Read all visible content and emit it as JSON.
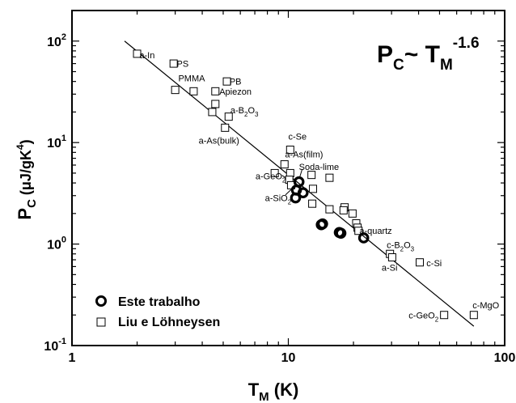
{
  "chart_data": {
    "type": "scatter",
    "xscale": "log",
    "yscale": "log",
    "xlim": [
      1,
      100
    ],
    "ylim": [
      0.1,
      200
    ],
    "xticks": [
      "1",
      "10",
      "100"
    ],
    "yticks": [
      {
        "base": "10",
        "exp": "-1"
      },
      {
        "base": "10",
        "exp": "0"
      },
      {
        "base": "10",
        "exp": "1"
      },
      {
        "base": "10",
        "exp": "2"
      }
    ],
    "xlabel": {
      "main": "T",
      "sub": "M",
      "unit": " (K)"
    },
    "ylabel": {
      "main": "P",
      "sub": "C",
      "unit_a": " (μJ/gK",
      "unit_sup": "4",
      "unit_b": ")"
    },
    "equation": {
      "p": "P",
      "psub": "C",
      "tilde": "~ T",
      "tsub": "M",
      "exp": "-1.6"
    },
    "legend": {
      "placement": "bottom-left",
      "entries": [
        {
          "marker": "circle",
          "label": "Este trabalho"
        },
        {
          "marker": "square",
          "label": "Liu e Löhneysen"
        }
      ]
    },
    "fit_line": {
      "x": [
        1.75,
        72
      ],
      "y": [
        100,
        0.155
      ]
    },
    "series": [
      {
        "name": "Este trabalho",
        "marker": "circle",
        "points": [
          {
            "x": 11.2,
            "y": 4.1
          },
          {
            "x": 10.9,
            "y": 3.4
          },
          {
            "x": 11.7,
            "y": 3.2
          },
          {
            "x": 10.8,
            "y": 2.85
          },
          {
            "x": 14.2,
            "y": 1.55
          },
          {
            "x": 14.4,
            "y": 1.58
          },
          {
            "x": 17.2,
            "y": 1.3
          },
          {
            "x": 17.5,
            "y": 1.28
          },
          {
            "x": 22.3,
            "y": 1.15
          }
        ]
      },
      {
        "name": "Liu e Löhneysen",
        "marker": "square",
        "points": [
          {
            "x": 2.0,
            "y": 75
          },
          {
            "x": 2.95,
            "y": 60
          },
          {
            "x": 5.2,
            "y": 40
          },
          {
            "x": 3.0,
            "y": 33
          },
          {
            "x": 3.65,
            "y": 32
          },
          {
            "x": 4.6,
            "y": 32
          },
          {
            "x": 4.6,
            "y": 24
          },
          {
            "x": 4.45,
            "y": 20
          },
          {
            "x": 5.3,
            "y": 18
          },
          {
            "x": 5.1,
            "y": 14
          },
          {
            "x": 10.2,
            "y": 8.5
          },
          {
            "x": 9.6,
            "y": 6.1
          },
          {
            "x": 8.65,
            "y": 5.0
          },
          {
            "x": 10.2,
            "y": 5.0
          },
          {
            "x": 10.1,
            "y": 4.3
          },
          {
            "x": 12.8,
            "y": 4.8
          },
          {
            "x": 15.5,
            "y": 4.5
          },
          {
            "x": 10.3,
            "y": 3.8
          },
          {
            "x": 13.0,
            "y": 3.5
          },
          {
            "x": 12.9,
            "y": 2.5
          },
          {
            "x": 15.5,
            "y": 2.2
          },
          {
            "x": 18.2,
            "y": 2.3
          },
          {
            "x": 18.0,
            "y": 2.15
          },
          {
            "x": 19.8,
            "y": 2.0
          },
          {
            "x": 20.6,
            "y": 1.6
          },
          {
            "x": 20.9,
            "y": 1.45
          },
          {
            "x": 21.1,
            "y": 1.35
          },
          {
            "x": 29.5,
            "y": 0.8
          },
          {
            "x": 30.2,
            "y": 0.74
          },
          {
            "x": 40.5,
            "y": 0.66
          },
          {
            "x": 52.5,
            "y": 0.2
          },
          {
            "x": 72.0,
            "y": 0.2
          }
        ]
      }
    ],
    "annotations": [
      {
        "text": "a-In",
        "x": 2.05,
        "y": 73
      },
      {
        "text": "PS",
        "x": 3.05,
        "y": 60
      },
      {
        "text": "PMMA",
        "x": 3.1,
        "y": 43
      },
      {
        "text": "PB",
        "x": 5.35,
        "y": 40
      },
      {
        "text": "Apiezon",
        "x": 4.8,
        "y": 32
      },
      {
        "text": "a-B",
        "x": 5.4,
        "y": 21,
        "sub": "2",
        "rest": "O",
        "sub2": "3"
      },
      {
        "text": "a-As(bulk)",
        "x": 3.85,
        "y": 10.5
      },
      {
        "text": "c-Se",
        "x": 10.0,
        "y": 11.5
      },
      {
        "text": "a-As(film)",
        "x": 9.65,
        "y": 7.7
      },
      {
        "text": "Soda-lime",
        "x": 11.2,
        "y": 5.8
      },
      {
        "text": "a-GeO",
        "x": 7.05,
        "y": 4.7,
        "sub": "2"
      },
      {
        "text": "a-SiO",
        "x": 7.8,
        "y": 2.85,
        "sub": "2"
      },
      {
        "text": "a-quartz",
        "x": 21.3,
        "y": 1.35
      },
      {
        "text": "c-B",
        "x": 28.5,
        "y": 0.98,
        "sub": "2",
        "rest": "O",
        "sub2": "3"
      },
      {
        "text": "c-Si",
        "x": 43.5,
        "y": 0.65
      },
      {
        "text": "a-Si",
        "x": 27.0,
        "y": 0.59
      },
      {
        "text": "c-MgO",
        "x": 71.0,
        "y": 0.25
      },
      {
        "text": "c-GeO",
        "x": 36.0,
        "y": 0.199,
        "sub": "2"
      }
    ]
  }
}
